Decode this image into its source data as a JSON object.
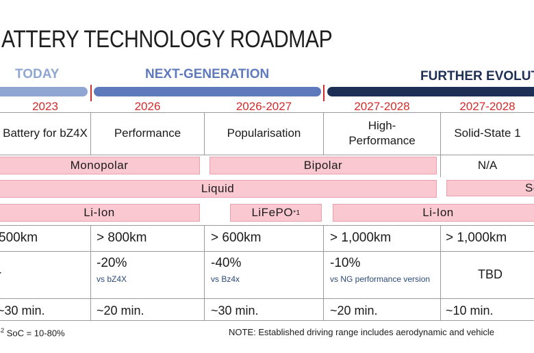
{
  "title": "ATTERY TECHNOLOGY ROADMAP",
  "phases": {
    "today": "TODAY",
    "next_generation": "NEXT-GENERATION",
    "further": "FURTHER EVOLUTI"
  },
  "colors": {
    "today_bar": "#8fa6d2",
    "next_bar": "#5f79bd",
    "further_bar": "#1d2f55",
    "year_red": "#d42a2a",
    "pink_fill": "#f9c8d0"
  },
  "years": [
    "2023",
    "2026",
    "2026-2027",
    "2027-2028",
    "2027-2028"
  ],
  "names": [
    "Battery for bZ4X",
    "Performance",
    "Popularisation",
    "High-Performance",
    "Solid-State 1"
  ],
  "electrode": {
    "monopolar": "Monopolar",
    "bipolar": "Bipolar",
    "na": "N/A"
  },
  "electrolyte": {
    "liquid": "Liquid",
    "solid": "So"
  },
  "chemistry": {
    "liion_1": "Li-Ion",
    "lifepo": "LiFePO",
    "lifepo_sup": "*1",
    "liion_2": "Li-Ion"
  },
  "range": [
    "500km",
    "> 800km",
    "> 600km",
    "> 1,000km",
    "> 1,000km"
  ],
  "cost": [
    {
      "value": "-",
      "note": ""
    },
    {
      "value": "-20%",
      "note": "vs bZ4X"
    },
    {
      "value": "-40%",
      "note": "vs Bz4x"
    },
    {
      "value": "-10%",
      "note": "vs NG performance version"
    },
    {
      "value": "TBD",
      "note": ""
    }
  ],
  "charging": [
    "~30 min.",
    "~20 min.",
    "~30 min.",
    "~20 min.",
    "~10 min."
  ],
  "footnote_left": {
    "prefix": "*",
    "sup": "2",
    "text": " SoC = 10-80%"
  },
  "footnote_right": "NOTE: Established driving range includes aerodynamic and vehicle"
}
